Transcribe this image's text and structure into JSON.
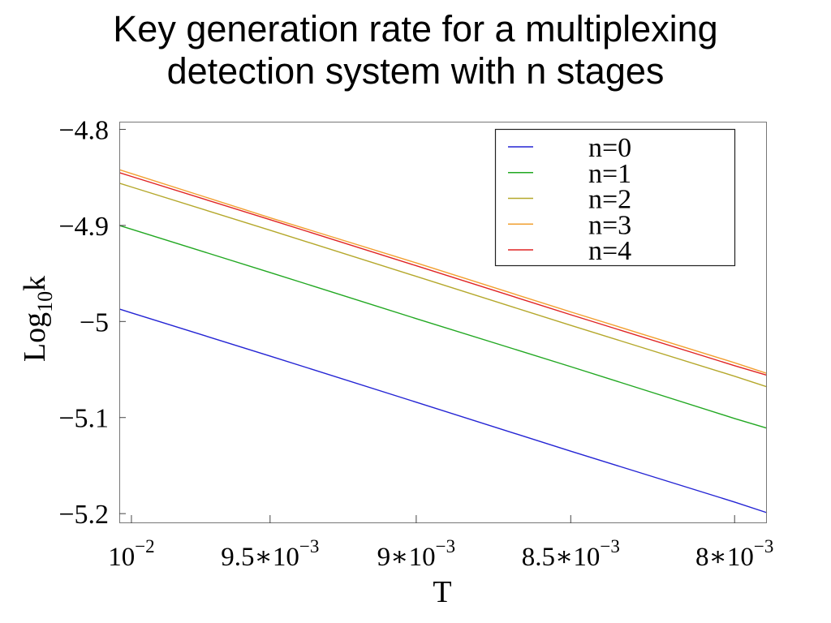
{
  "chart_data": {
    "type": "line",
    "title": "Key generation rate for a multiplexing detection system with n stages",
    "xlabel": "T",
    "ylabel": {
      "text": "Log",
      "subscript": "10",
      "suffix": "k"
    },
    "x_scale": "log",
    "x_direction": "decreasing",
    "xlim": [
      0.010045,
      0.007905
    ],
    "ylim": [
      -5.21,
      -4.792
    ],
    "grid": false,
    "legend_position": "top-right",
    "x_ticks": [
      {
        "value": 0.01,
        "label": "10",
        "exponent": "−2"
      },
      {
        "value": 0.0095,
        "label": "9.5∗10",
        "exponent": "−3"
      },
      {
        "value": 0.009,
        "label": "9∗10",
        "exponent": "−3"
      },
      {
        "value": 0.0085,
        "label": "8.5∗10",
        "exponent": "−3"
      },
      {
        "value": 0.008,
        "label": "8∗10",
        "exponent": "−3"
      }
    ],
    "y_ticks": [
      {
        "value": -4.8,
        "label": "−4.8"
      },
      {
        "value": -4.9,
        "label": "−4.9"
      },
      {
        "value": -5.0,
        "label": "−5"
      },
      {
        "value": -5.1,
        "label": "−5.1"
      },
      {
        "value": -5.2,
        "label": "−5.2"
      }
    ],
    "x": [
      0.010045,
      0.01,
      0.0095,
      0.009,
      0.0085,
      0.008,
      0.007905
    ],
    "series": [
      {
        "name": "n=0",
        "color": "#2424d4",
        "values": [
          -4.987,
          -4.991,
          -5.036,
          -5.084,
          -5.135,
          -5.188,
          -5.199
        ]
      },
      {
        "name": "n=1",
        "color": "#22a822",
        "values": [
          -4.9,
          -4.904,
          -4.949,
          -4.997,
          -5.047,
          -5.101,
          -5.111
        ]
      },
      {
        "name": "n=2",
        "color": "#b5a82c",
        "values": [
          -4.856,
          -4.86,
          -4.905,
          -4.953,
          -5.004,
          -5.057,
          -5.068
        ]
      },
      {
        "name": "n=3",
        "color": "#f2a030",
        "values": [
          -4.842,
          -4.846,
          -4.892,
          -4.939,
          -4.99,
          -5.043,
          -5.054
        ]
      },
      {
        "name": "n=4",
        "color": "#e02424",
        "values": [
          -4.845,
          -4.849,
          -4.894,
          -4.942,
          -4.993,
          -5.046,
          -5.056
        ]
      }
    ]
  }
}
